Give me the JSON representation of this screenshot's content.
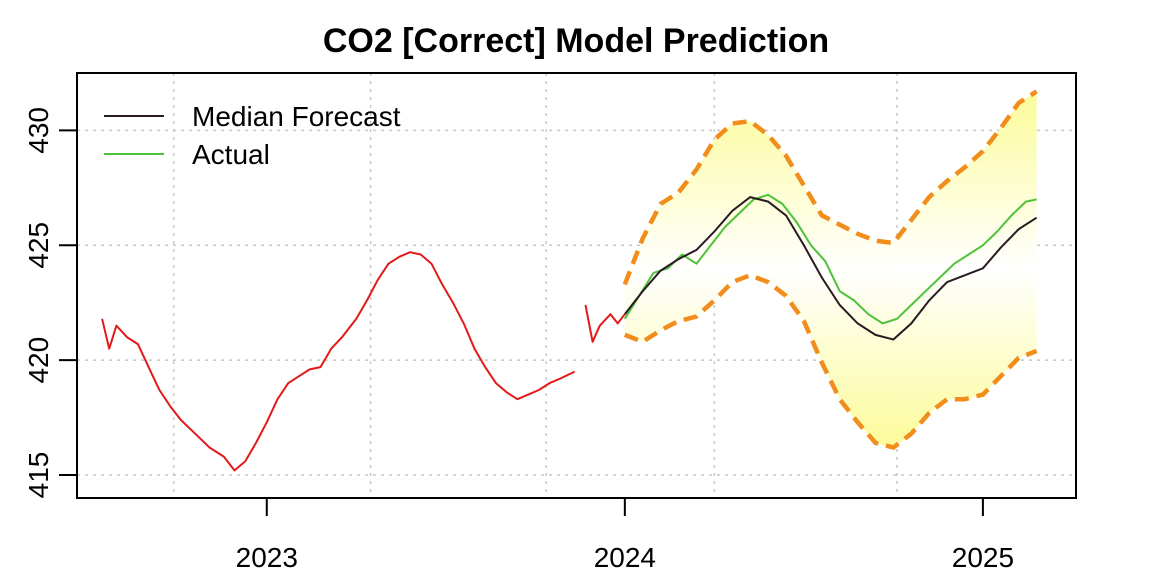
{
  "chart_data": {
    "type": "line",
    "title": "CO2 [Correct] Model Prediction",
    "xlabel": "",
    "ylabel": "",
    "xlim": [
      2022.47,
      2025.26
    ],
    "ylim": [
      414,
      432.5
    ],
    "x_ticks": [
      2023,
      2024,
      2025
    ],
    "x_tick_labels": [
      "2023",
      "2024",
      "2025"
    ],
    "y_ticks": [
      415,
      420,
      425,
      430
    ],
    "y_tick_labels": [
      "415",
      "420",
      "425",
      "430"
    ],
    "grid": true,
    "grid_x": [
      2022.74,
      2023.29,
      2023.78,
      2024.25,
      2024.76
    ],
    "legend": {
      "position": "top-left",
      "entries": [
        {
          "label": "Median Forecast",
          "color": "#2a1a24"
        },
        {
          "label": "Actual",
          "color": "#4fc23c"
        }
      ]
    },
    "colors": {
      "history": "#e21a1a",
      "actual": "#4fc23c",
      "median": "#2a1a24",
      "bounds": "#f28c1a",
      "band_edge": "#fbfb9a",
      "band_center": "#ffffff"
    },
    "series": [
      {
        "name": "History",
        "segments": [
          {
            "x": [
              2022.54,
              2022.56,
              2022.58,
              2022.61,
              2022.64,
              2022.67,
              2022.7,
              2022.73,
              2022.76,
              2022.8,
              2022.84,
              2022.88,
              2022.91,
              2022.94,
              2022.97,
              2023.0,
              2023.03,
              2023.06,
              2023.09,
              2023.12,
              2023.15,
              2023.18,
              2023.21,
              2023.25,
              2023.28,
              2023.31,
              2023.34,
              2023.37,
              2023.4,
              2023.43,
              2023.46,
              2023.49,
              2023.52,
              2023.55,
              2023.58,
              2023.61,
              2023.64,
              2023.67,
              2023.7,
              2023.73,
              2023.76,
              2023.79,
              2023.82,
              2023.86
            ],
            "y": [
              421.8,
              420.5,
              421.5,
              421.0,
              420.7,
              419.7,
              418.7,
              418.0,
              417.4,
              416.8,
              416.2,
              415.8,
              415.2,
              415.6,
              416.4,
              417.3,
              418.3,
              419.0,
              419.3,
              419.6,
              419.7,
              420.5,
              421.0,
              421.8,
              422.6,
              423.5,
              424.2,
              424.5,
              424.7,
              424.6,
              424.2,
              423.3,
              422.5,
              421.6,
              420.5,
              419.7,
              419.0,
              418.6,
              418.3,
              418.5,
              418.7,
              419.0,
              419.2,
              419.5
            ]
          },
          {
            "x": [
              2023.89,
              2023.91,
              2023.93,
              2023.96,
              2023.98,
              2024.0
            ],
            "y": [
              422.4,
              420.8,
              421.5,
              422.0,
              421.6,
              422.0
            ]
          }
        ]
      },
      {
        "name": "Actual",
        "x": [
          2024.0,
          2024.04,
          2024.08,
          2024.12,
          2024.16,
          2024.2,
          2024.24,
          2024.28,
          2024.32,
          2024.36,
          2024.4,
          2024.44,
          2024.48,
          2024.52,
          2024.56,
          2024.6,
          2024.64,
          2024.68,
          2024.72,
          2024.76,
          2024.8,
          2024.84,
          2024.88,
          2024.92,
          2024.96,
          2025.0,
          2025.04,
          2025.08,
          2025.12,
          2025.15
        ],
        "y": [
          421.8,
          422.8,
          423.8,
          424.0,
          424.6,
          424.2,
          425.0,
          425.8,
          426.4,
          427.0,
          427.2,
          426.8,
          426.0,
          425.0,
          424.3,
          423.0,
          422.6,
          422.0,
          421.6,
          421.8,
          422.4,
          423.0,
          423.6,
          424.2,
          424.6,
          425.0,
          425.6,
          426.3,
          426.9,
          427.0
        ]
      },
      {
        "name": "Median Forecast",
        "x": [
          2024.0,
          2024.05,
          2024.1,
          2024.15,
          2024.2,
          2024.25,
          2024.3,
          2024.35,
          2024.4,
          2024.45,
          2024.5,
          2024.55,
          2024.6,
          2024.65,
          2024.7,
          2024.75,
          2024.8,
          2024.85,
          2024.9,
          2024.95,
          2025.0,
          2025.05,
          2025.1,
          2025.15
        ],
        "y": [
          422.0,
          423.0,
          423.9,
          424.4,
          424.8,
          425.6,
          426.5,
          427.1,
          426.9,
          426.3,
          425.0,
          423.6,
          422.4,
          421.6,
          421.1,
          420.9,
          421.6,
          422.6,
          423.4,
          423.7,
          424.0,
          424.9,
          425.7,
          426.2
        ]
      },
      {
        "name": "Upper Bound",
        "x": [
          2024.0,
          2024.05,
          2024.1,
          2024.15,
          2024.2,
          2024.25,
          2024.3,
          2024.35,
          2024.4,
          2024.45,
          2024.5,
          2024.55,
          2024.6,
          2024.65,
          2024.7,
          2024.75,
          2024.8,
          2024.85,
          2024.9,
          2024.95,
          2025.0,
          2025.05,
          2025.1,
          2025.15
        ],
        "y": [
          423.3,
          425.3,
          426.8,
          427.3,
          428.3,
          429.6,
          430.3,
          430.4,
          429.8,
          428.9,
          427.6,
          426.3,
          425.9,
          425.5,
          425.2,
          425.1,
          426.1,
          427.1,
          427.8,
          428.4,
          429.1,
          430.1,
          431.2,
          431.7
        ]
      },
      {
        "name": "Lower Bound",
        "x": [
          2024.0,
          2024.05,
          2024.1,
          2024.15,
          2024.2,
          2024.25,
          2024.3,
          2024.35,
          2024.4,
          2024.45,
          2024.5,
          2024.55,
          2024.6,
          2024.65,
          2024.7,
          2024.75,
          2024.8,
          2024.85,
          2024.9,
          2024.95,
          2025.0,
          2025.05,
          2025.1,
          2025.15
        ],
        "y": [
          421.1,
          420.8,
          421.3,
          421.7,
          421.9,
          422.6,
          423.4,
          423.7,
          423.4,
          422.8,
          421.7,
          419.9,
          418.3,
          417.3,
          416.4,
          416.2,
          416.8,
          417.7,
          418.3,
          418.3,
          418.5,
          419.3,
          420.1,
          420.4
        ]
      }
    ]
  }
}
